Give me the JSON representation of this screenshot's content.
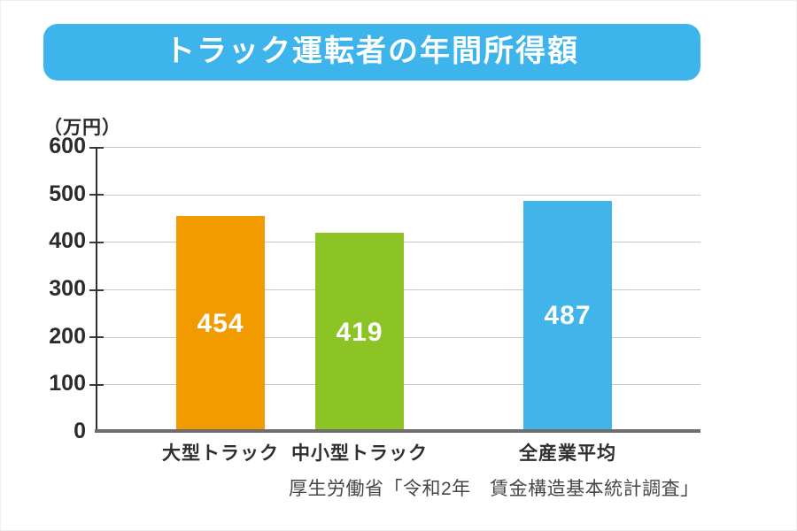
{
  "title": "トラック運転者の年間所得額",
  "unit_label": "（万円）",
  "source": "厚生労働省「令和2年　賃金構造基本統計調査」",
  "colors": {
    "title_background": "#3db4ec",
    "bar_orange": "#f29b00",
    "bar_green": "#8cc425",
    "bar_blue": "#41b4e9",
    "gridline": "#c9c9c9",
    "axis": "#2f2f2f",
    "baseline": "#6e6e6e",
    "value_label_text": "#ffffff",
    "text_dark": "#2b2b2b"
  },
  "chart_data": {
    "type": "bar",
    "title": "トラック運転者の年間所得額",
    "unit": "万円",
    "categories": [
      "大型トラック",
      "中小型トラック",
      "全産業平均"
    ],
    "values": [
      454,
      419,
      487
    ],
    "bar_colors": [
      "#f29b00",
      "#8cc425",
      "#41b4e9"
    ],
    "ylabel": "（万円）",
    "ylim": [
      0,
      600
    ],
    "yticks": [
      600,
      500,
      400,
      300,
      200,
      100,
      0
    ],
    "grid": true,
    "legend": false,
    "source": "厚生労働省「令和2年　賃金構造基本統計調査」"
  }
}
